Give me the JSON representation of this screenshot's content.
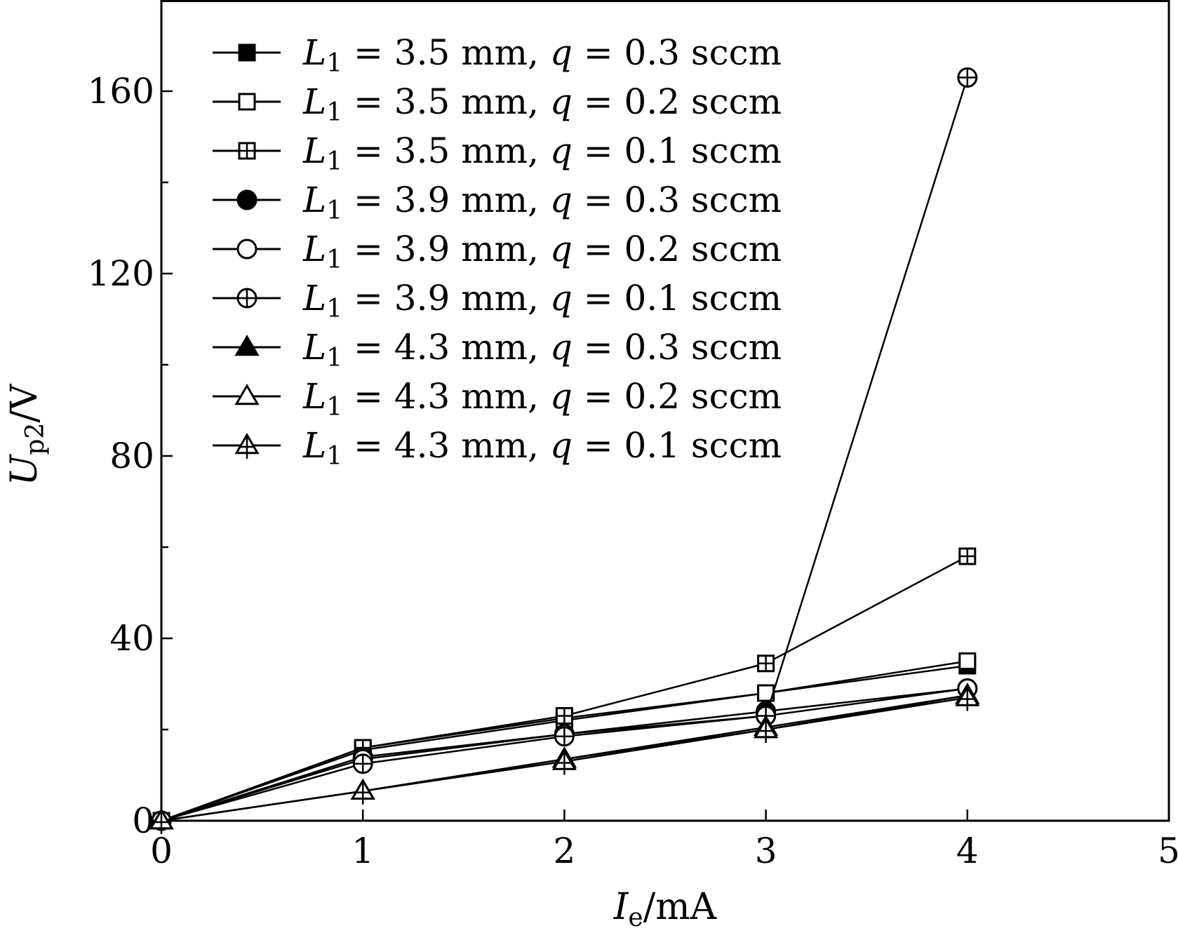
{
  "chart_data": {
    "type": "line",
    "title": "",
    "xlabel": "I_e/mA",
    "ylabel": "U_p2/V",
    "xlabel_parts": {
      "symbol": "I",
      "sub": "e",
      "unit": "/mA"
    },
    "ylabel_parts": {
      "symbol": "U",
      "sub": "p2",
      "unit": "/V"
    },
    "xlim": [
      0,
      5
    ],
    "ylim": [
      0,
      180
    ],
    "xticks": [
      0,
      1,
      2,
      3,
      4,
      5
    ],
    "yticks": [
      0,
      40,
      80,
      120,
      160
    ],
    "yminor_ticks": [
      20,
      60,
      100,
      140
    ],
    "grid": false,
    "legend_position": "top-left",
    "x": [
      0,
      1,
      2,
      3,
      4
    ],
    "series": [
      {
        "name": "L1=3.5 mm, q=0.3 sccm",
        "L1": "3.5",
        "q": "0.3",
        "marker": "square-filled",
        "values": [
          0,
          16.0,
          22.5,
          28.0,
          34.0
        ]
      },
      {
        "name": "L1=3.5 mm, q=0.2 sccm",
        "L1": "3.5",
        "q": "0.2",
        "marker": "square-open",
        "values": [
          0,
          15.5,
          22.0,
          28.0,
          35.0
        ]
      },
      {
        "name": "L1=3.5 mm, q=0.1 sccm",
        "L1": "3.5",
        "q": "0.1",
        "marker": "square-plus",
        "values": [
          0,
          16.0,
          23.0,
          34.5,
          58.0
        ]
      },
      {
        "name": "L1=3.9 mm, q=0.3 sccm",
        "L1": "3.9",
        "q": "0.3",
        "marker": "circle-filled",
        "values": [
          0,
          14.0,
          19.0,
          24.0,
          29.0
        ]
      },
      {
        "name": "L1=3.9 mm, q=0.2 sccm",
        "L1": "3.9",
        "q": "0.2",
        "marker": "circle-open",
        "values": [
          0,
          13.5,
          19.0,
          23.0,
          29.0
        ]
      },
      {
        "name": "L1=3.9 mm, q=0.1 sccm",
        "L1": "3.9",
        "q": "0.1",
        "marker": "circle-plus",
        "values": [
          0,
          12.5,
          18.5,
          23.0,
          163.0
        ]
      },
      {
        "name": "L1=4.3 mm, q=0.3 sccm",
        "L1": "4.3",
        "q": "0.3",
        "marker": "triangle-filled",
        "values": [
          0,
          6.5,
          13.5,
          20.5,
          27.5
        ]
      },
      {
        "name": "L1=4.3 mm, q=0.2 sccm",
        "L1": "4.3",
        "q": "0.2",
        "marker": "triangle-open",
        "values": [
          0,
          6.5,
          13.5,
          20.0,
          27.5
        ]
      },
      {
        "name": "L1=4.3 mm, q=0.1 sccm",
        "L1": "4.3",
        "q": "0.1",
        "marker": "triangle-plus",
        "values": [
          0,
          6.5,
          13.0,
          20.0,
          27.0
        ]
      }
    ],
    "colors": {
      "line": "#000000",
      "background": "#ffffff"
    }
  }
}
